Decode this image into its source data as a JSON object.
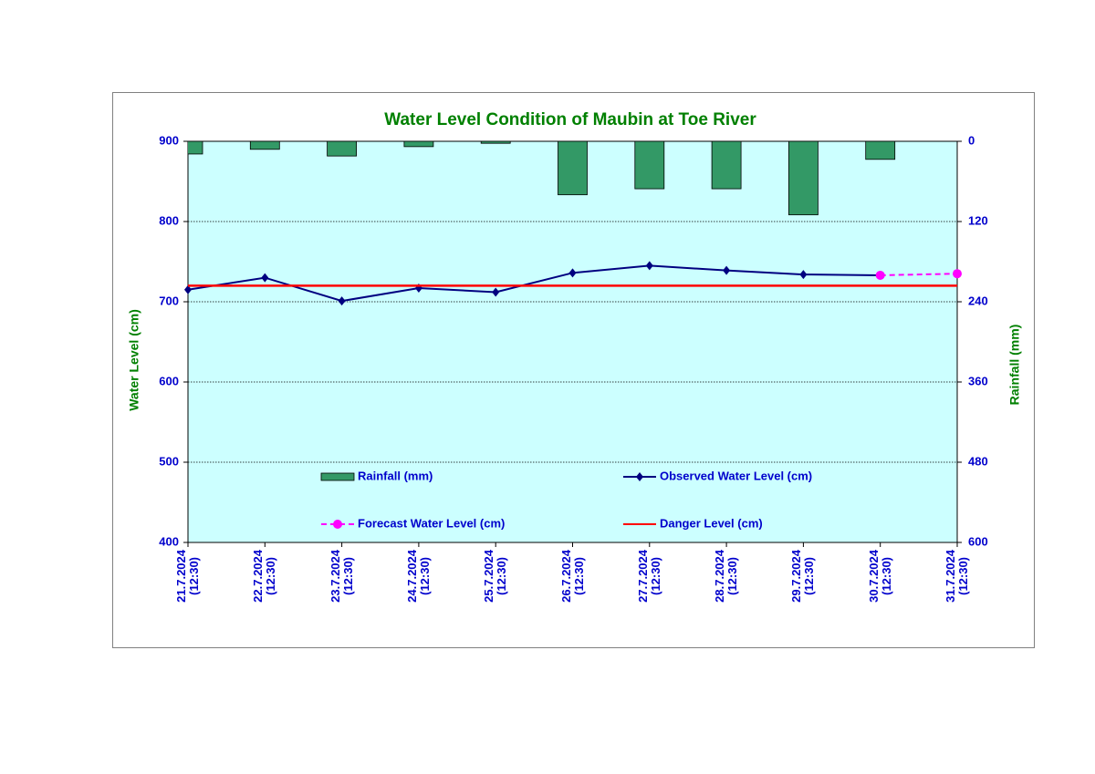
{
  "chart_data": {
    "type": "bar_line",
    "title": "Water Level Condition of  Maubin at Toe River",
    "y_label": "Water Level (cm)",
    "y2_label": "Rainfall (mm)",
    "categories": [
      "21.7.2024\n(12:30)",
      "22.7.2024\n(12:30)",
      "23.7.2024\n(12:30)",
      "24.7.2024\n(12:30)",
      "25.7.2024\n(12:30)",
      "26.7.2024\n(12:30)",
      "27.7.2024\n(12:30)",
      "28.7.2024\n(12:30)",
      "29.7.2024\n(12:30)",
      "30.7.2024\n(12:30)",
      "31.7.2024\n(12:30)"
    ],
    "series": [
      {
        "name": "Rainfall (mm)",
        "type": "bar",
        "axis": "y2",
        "color": "#339966",
        "values": [
          19,
          12,
          22,
          8,
          3,
          80,
          71,
          71,
          110,
          27,
          null
        ]
      },
      {
        "name": "Observed Water Level (cm)",
        "type": "line",
        "marker": "diamond",
        "color": "#000080",
        "values": [
          715,
          730,
          701,
          717,
          712,
          736,
          745,
          739,
          734,
          733,
          null
        ]
      },
      {
        "name": "Forecast Water Level (cm)",
        "type": "line",
        "marker": "circle",
        "dashed": true,
        "color": "#ff00ff",
        "values": [
          null,
          null,
          null,
          null,
          null,
          null,
          null,
          null,
          null,
          733,
          735
        ]
      },
      {
        "name": "Danger Level (cm)",
        "type": "line",
        "color": "#ff0000",
        "values": [
          720,
          720,
          720,
          720,
          720,
          720,
          720,
          720,
          720,
          720,
          720
        ]
      }
    ],
    "ylim": [
      400,
      900
    ],
    "yticks": [
      400,
      500,
      600,
      700,
      800,
      900
    ],
    "y2lim": [
      600,
      0
    ],
    "y2ticks": [
      0,
      120,
      240,
      360,
      480,
      600
    ],
    "grid": true,
    "background": "#ccffff"
  }
}
